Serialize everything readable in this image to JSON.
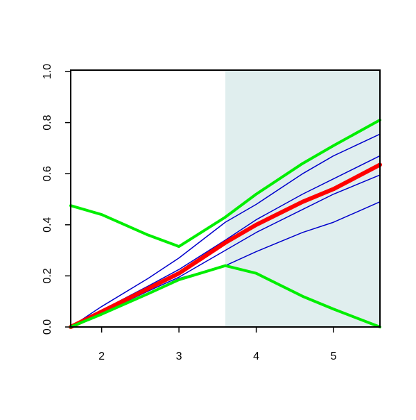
{
  "chart_data": {
    "type": "line",
    "x": [
      1.6,
      2.0,
      2.6,
      3.0,
      3.6,
      4.0,
      4.6,
      5.0,
      5.6
    ],
    "series": [
      {
        "color": "#0000cc",
        "width": 1.5,
        "values": [
          0,
          0.08,
          0.19,
          0.27,
          0.41,
          0.48,
          0.6,
          0.67,
          0.755
        ]
      },
      {
        "color": "#0000cc",
        "width": 1.5,
        "values": [
          0,
          0.065,
          0.16,
          0.225,
          0.34,
          0.42,
          0.52,
          0.58,
          0.67
        ]
      },
      {
        "color": "#0000cc",
        "width": 1.5,
        "values": [
          0,
          0.055,
          0.14,
          0.195,
          0.3,
          0.37,
          0.46,
          0.52,
          0.595
        ]
      },
      {
        "color": "#0000cc",
        "width": 1.5,
        "values": [
          0,
          0.05,
          0.13,
          0.19,
          0.24,
          0.295,
          0.37,
          0.41,
          0.49
        ]
      },
      {
        "color": "#ff0000",
        "width": 6,
        "values": [
          0,
          0.06,
          0.15,
          0.21,
          0.33,
          0.4,
          0.49,
          0.54,
          0.635
        ]
      },
      {
        "color": "#00ee00",
        "width": 4,
        "values": [
          0.475,
          0.44,
          0.36,
          0.315,
          0.43,
          0.52,
          0.64,
          0.71,
          0.81
        ]
      },
      {
        "color": "#00ee00",
        "width": 4,
        "values": [
          0,
          0.05,
          0.13,
          0.185,
          0.24,
          0.21,
          0.12,
          0.07,
          0
        ]
      }
    ],
    "highlight": {
      "xmin": 3.6,
      "xmax": 5.6,
      "color": "#e0eeee"
    },
    "xlim": [
      1.6,
      5.6
    ],
    "ylim": [
      0,
      1
    ],
    "xticks": [
      2,
      3,
      4,
      5
    ],
    "yticks": [
      {
        "value": 0,
        "label": "0.0"
      },
      {
        "value": 0.2,
        "label": "0.2"
      },
      {
        "value": 0.4,
        "label": "0.4"
      },
      {
        "value": 0.6,
        "label": "0.6"
      },
      {
        "value": 0.8,
        "label": "0.8"
      },
      {
        "value": 1,
        "label": "1.0"
      }
    ]
  }
}
